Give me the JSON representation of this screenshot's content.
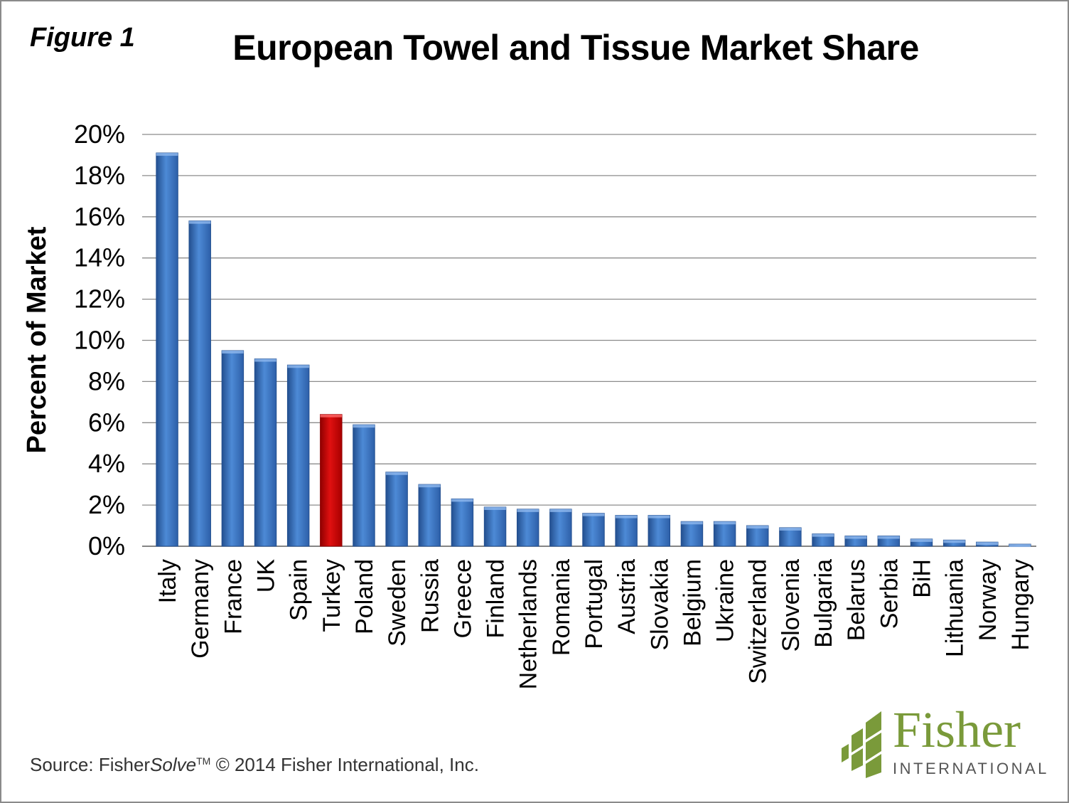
{
  "figure_label": "Figure 1",
  "source": {
    "prefix": "Source: Fisher",
    "italic": "Solve",
    "tm": "TM",
    "suffix": " © 2014 Fisher International, Inc."
  },
  "logo": {
    "word": "Fisher",
    "sub": "INTERNATIONAL",
    "color": "#7a9a3a"
  },
  "colors": {
    "bar": "#3f78c5",
    "bar_dark": "#234f8f",
    "highlight": "#d40000",
    "highlight_dark": "#8f0000",
    "grid": "#8c8c8c"
  },
  "chart_data": {
    "type": "bar",
    "title": "European Towel and Tissue Market Share",
    "ylabel": "Percent of Market",
    "xlabel": "",
    "ylim": [
      0,
      20
    ],
    "y_ticks": [
      "0%",
      "2%",
      "4%",
      "6%",
      "8%",
      "10%",
      "12%",
      "14%",
      "16%",
      "18%",
      "20%"
    ],
    "grid": true,
    "highlight_category": "Turkey",
    "categories": [
      "Italy",
      "Germany",
      "France",
      "UK",
      "Spain",
      "Turkey",
      "Poland",
      "Sweden",
      "Russia",
      "Greece",
      "Finland",
      "Netherlands",
      "Romania",
      "Portugal",
      "Austria",
      "Slovakia",
      "Belgium",
      "Ukraine",
      "Switzerland",
      "Slovenia",
      "Bulgaria",
      "Belarus",
      "Serbia",
      "BiH",
      "Lithuania",
      "Norway",
      "Hungary"
    ],
    "values": [
      19.1,
      15.8,
      9.5,
      9.1,
      8.8,
      6.4,
      5.9,
      3.6,
      3.0,
      2.3,
      1.9,
      1.8,
      1.8,
      1.6,
      1.5,
      1.5,
      1.2,
      1.2,
      1.0,
      0.9,
      0.6,
      0.5,
      0.5,
      0.35,
      0.3,
      0.2,
      0.1
    ]
  }
}
